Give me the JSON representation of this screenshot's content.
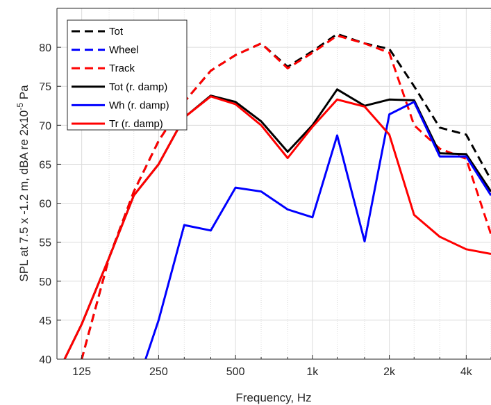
{
  "chart_data": {
    "type": "line",
    "xscale": "log",
    "xlabel": "Frequency, Hz",
    "ylabel_main": "SPL at 7.5 x -1.2 m, dBA re 2x10",
    "ylabel_sup": "-5",
    "ylabel_end": " Pa",
    "xlim": [
      100,
      5000
    ],
    "ylim": [
      40,
      85
    ],
    "grid": true,
    "minor_grid": true,
    "legend_position": "top-left",
    "x_major_ticks": [
      125,
      250,
      500,
      1000,
      2000,
      4000
    ],
    "x_tick_labels": [
      "125",
      "250",
      "500",
      "1k",
      "2k",
      "4k"
    ],
    "x_minor_ticks": [
      100,
      160,
      200,
      315,
      400,
      630,
      800,
      1250,
      1600,
      2500,
      3150,
      5000
    ],
    "y_ticks": [
      40,
      45,
      50,
      55,
      60,
      65,
      70,
      75,
      80
    ],
    "y_tick_labels": [
      "40",
      "45",
      "50",
      "55",
      "60",
      "65",
      "70",
      "75",
      "80"
    ],
    "x": [
      100,
      125,
      160,
      200,
      250,
      315,
      400,
      500,
      630,
      800,
      1000,
      1250,
      1600,
      2000,
      2500,
      3150,
      4000,
      5000
    ],
    "series": [
      {
        "name": "Tot",
        "color": "#000000",
        "dash": "dashed",
        "values": [
          32.0,
          40.0,
          53.0,
          61.5,
          68.0,
          73.0,
          77.0,
          79.0,
          80.5,
          77.5,
          79.5,
          81.7,
          80.5,
          79.8,
          75.0,
          69.7,
          68.8,
          63.0
        ]
      },
      {
        "name": "Wheel",
        "color": "#0000ff",
        "dash": "dashed",
        "values": [
          null,
          null,
          null,
          null,
          null,
          null,
          null,
          null,
          null,
          null,
          null,
          null,
          null,
          null,
          null,
          null,
          null,
          null
        ]
      },
      {
        "name": "Track",
        "color": "#ff0000",
        "dash": "dashed",
        "values": [
          32.0,
          40.0,
          53.0,
          61.5,
          68.0,
          73.0,
          77.0,
          79.0,
          80.5,
          77.3,
          79.3,
          81.5,
          80.5,
          79.3,
          70.0,
          67.0,
          65.7,
          56.0
        ]
      },
      {
        "name": "Tot (r. damp)",
        "color": "#000000",
        "dash": "solid",
        "values": [
          38.0,
          44.5,
          53.0,
          61.0,
          65.0,
          71.0,
          73.8,
          73.0,
          70.5,
          66.6,
          70.0,
          74.6,
          72.5,
          73.3,
          73.2,
          66.4,
          66.3,
          61.5
        ]
      },
      {
        "name": "Wh (r. damp)",
        "color": "#0000ff",
        "dash": "solid",
        "values": [
          null,
          null,
          null,
          35.5,
          45.0,
          57.2,
          56.5,
          62.0,
          61.5,
          59.2,
          58.2,
          68.7,
          55.1,
          71.4,
          73.0,
          66.0,
          66.0,
          61.0
        ]
      },
      {
        "name": "Tr (r. damp)",
        "color": "#ff0000",
        "dash": "solid",
        "values": [
          38.0,
          44.5,
          53.0,
          61.0,
          65.0,
          71.0,
          73.7,
          72.7,
          70.0,
          65.8,
          69.8,
          73.3,
          72.4,
          68.8,
          58.5,
          55.7,
          54.1,
          53.5
        ]
      }
    ]
  }
}
